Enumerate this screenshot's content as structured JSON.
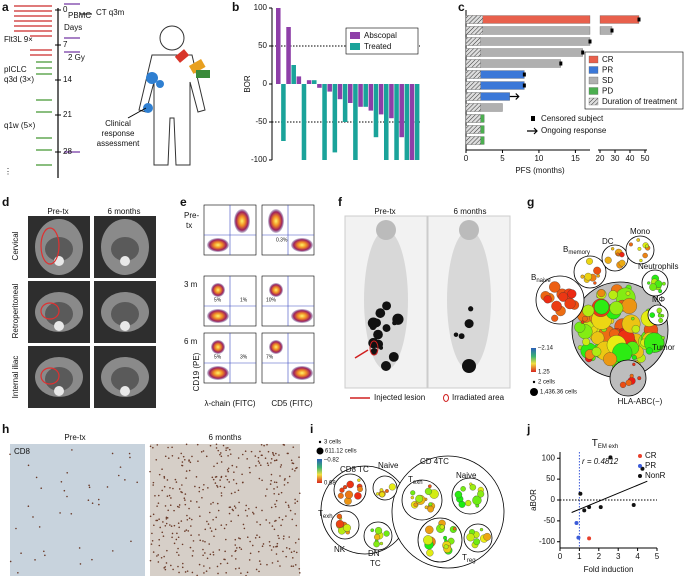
{
  "panel_labels": [
    "a",
    "b",
    "c",
    "d",
    "e",
    "f",
    "g",
    "h",
    "i",
    "j"
  ],
  "a": {
    "day_0": "0",
    "pbmc": "PBMC",
    "ct": "CT q3m",
    "days": "Days",
    "flt3l": "Flt3L 9×",
    "day_7": "7",
    "radiation": "2 Gy",
    "piclc": "pICLC",
    "piclc_schedule": "q3d (3×)",
    "day_14": "14",
    "day_21": "21",
    "q1w": "q1w (5×)",
    "day_28": "28",
    "assessment": [
      "Clinical",
      "response",
      "assessment"
    ]
  },
  "d": {
    "columns": [
      "Pre-tx",
      "6 months"
    ],
    "rows": [
      "Cervical",
      "Retroperitoneal",
      "Internal iliac"
    ]
  },
  "e": {
    "pre_tx": [
      "Pre-",
      "tx"
    ],
    "month_3": "3 m",
    "month_6": "6 m",
    "y_label": "CD19 (PE)",
    "x_labels": [
      "λ-chain (FITC)",
      "CD5 (FITC)"
    ],
    "gates": [
      "0.3%",
      "5%",
      "1%",
      "10%",
      "5%",
      "3%",
      "7%"
    ]
  },
  "f": {
    "columns": [
      "Pre-tx",
      "6 months"
    ],
    "legend": [
      "Injected lesion",
      "Irradiated area"
    ]
  },
  "g": {
    "b_memory": {
      "text": "B",
      "sub": "memory"
    },
    "b_naive": {
      "text": "B",
      "sub": "naive"
    },
    "dc": "DC",
    "mono": "Mono",
    "neutrophils": "Neutrophils",
    "macrophage": "MΦ",
    "tumor": "Tumor",
    "hla": "HLA-ABC(−)",
    "scale": [
      "–2.14",
      "1.25"
    ],
    "sizes": [
      "2 cells",
      "1,436.36 cells"
    ]
  },
  "h": {
    "stain": "CD8",
    "columns": [
      "Pre-tx",
      "6 months"
    ]
  },
  "i": {
    "sizes": [
      "3 cells",
      "611.12 cells"
    ],
    "scale": [
      "–0.82",
      "0.68"
    ],
    "cd8": "CD8 TC",
    "naive_cd8": "Naive",
    "cd4": "CD 4TC",
    "t_exh_cd4": {
      "text": "T",
      "sub": "exh"
    },
    "naive_cd4": "Naive",
    "t_exh_cd8": {
      "text": "T",
      "sub": "exh"
    },
    "nk": "NK",
    "dn": [
      "DN",
      "TC"
    ],
    "t_reg": {
      "text": "T",
      "sub": "reg"
    }
  },
  "chart_data": [
    {
      "type": "bar",
      "ylabel": "BOR",
      "ylim": [
        -100,
        100
      ],
      "yticks": [
        -100,
        -50,
        0,
        50,
        100
      ],
      "reference_lines": [
        50,
        -50
      ],
      "legend_position": "upper right",
      "categories": [
        null,
        null,
        null,
        null,
        null,
        null,
        null,
        null,
        null,
        null,
        null,
        null,
        null,
        null
      ],
      "series": [
        {
          "name": "Abscopal",
          "color": "#8e3fa8",
          "values": [
            100,
            75,
            10,
            5,
            -5,
            -10,
            -20,
            -25,
            -30,
            -35,
            -40,
            -45,
            -70,
            -100
          ]
        },
        {
          "name": "Treated",
          "color": "#1aa39a",
          "values": [
            -75,
            25,
            -100,
            5,
            -100,
            -90,
            -50,
            -100,
            -30,
            -70,
            -100,
            -100,
            -100,
            -100
          ]
        }
      ]
    },
    {
      "type": "barh",
      "xlabel": "PFS (months)",
      "xlim": [
        0,
        50
      ],
      "axis_break": [
        17,
        20
      ],
      "xticks": [
        0,
        5,
        10,
        15,
        20,
        30,
        40,
        50
      ],
      "categories": [
        null,
        null,
        null,
        null,
        null,
        null,
        null,
        null,
        null,
        null,
        null,
        null
      ],
      "values": [
        46,
        28,
        17,
        16,
        13,
        8,
        8,
        6,
        5,
        2.5,
        2.5,
        2.5
      ],
      "groups": [
        "CR",
        "SD",
        "SD",
        "SD",
        "SD",
        "PR",
        "PR",
        "PR",
        "SD",
        "PD",
        "PD",
        "PD"
      ],
      "treatment_duration": [
        2.3,
        2.3,
        2,
        2,
        2,
        2,
        2,
        2,
        2,
        2,
        2,
        2
      ],
      "censored": [
        true,
        true,
        true,
        true,
        true,
        true,
        true,
        false,
        false,
        false,
        false,
        false
      ],
      "ongoing": [
        false,
        false,
        false,
        false,
        false,
        false,
        false,
        true,
        false,
        false,
        false,
        false
      ],
      "legend": [
        {
          "name": "CR",
          "color": "#e8604c"
        },
        {
          "name": "PR",
          "color": "#3b78d8"
        },
        {
          "name": "SD",
          "color": "#b0b0b0"
        },
        {
          "name": "PD",
          "color": "#4caf50"
        },
        {
          "name": "Duration of treatment",
          "pattern": "hatch"
        }
      ],
      "censored_label": "Censored subject",
      "ongoing_label": "Ongoing response"
    },
    {
      "type": "scatter",
      "title": {
        "text": "T",
        "sub": "EM exh"
      },
      "annotation": "r = 0.4812",
      "xlabel": "Fold induction",
      "ylabel": "aBOR",
      "xlim": [
        0,
        5
      ],
      "ylim": [
        -115,
        115
      ],
      "xticks": [
        0,
        1,
        2,
        3,
        4,
        5
      ],
      "yticks": [
        -100,
        -50,
        0,
        50,
        100
      ],
      "x_reference": 1,
      "y_reference": 0,
      "legend_position": "upper right",
      "series": [
        {
          "name": "CR",
          "color": "#e8402c",
          "x": [
            1.5
          ],
          "values": [
            -92
          ]
        },
        {
          "name": "PR",
          "color": "#3b5bd8",
          "x": [
            0.85,
            0.95
          ],
          "values": [
            -55,
            -90
          ]
        },
        {
          "name": "NonR",
          "color": "#111111",
          "x": [
            1.05,
            1.25,
            1.5,
            2.1,
            2.6,
            3.8,
            4.25
          ],
          "values": [
            15,
            -25,
            -17,
            -17,
            102,
            -12,
            75
          ]
        }
      ],
      "fit_line": {
        "x": [
          0.6,
          4.5
        ],
        "values": [
          -30,
          45
        ]
      }
    }
  ]
}
